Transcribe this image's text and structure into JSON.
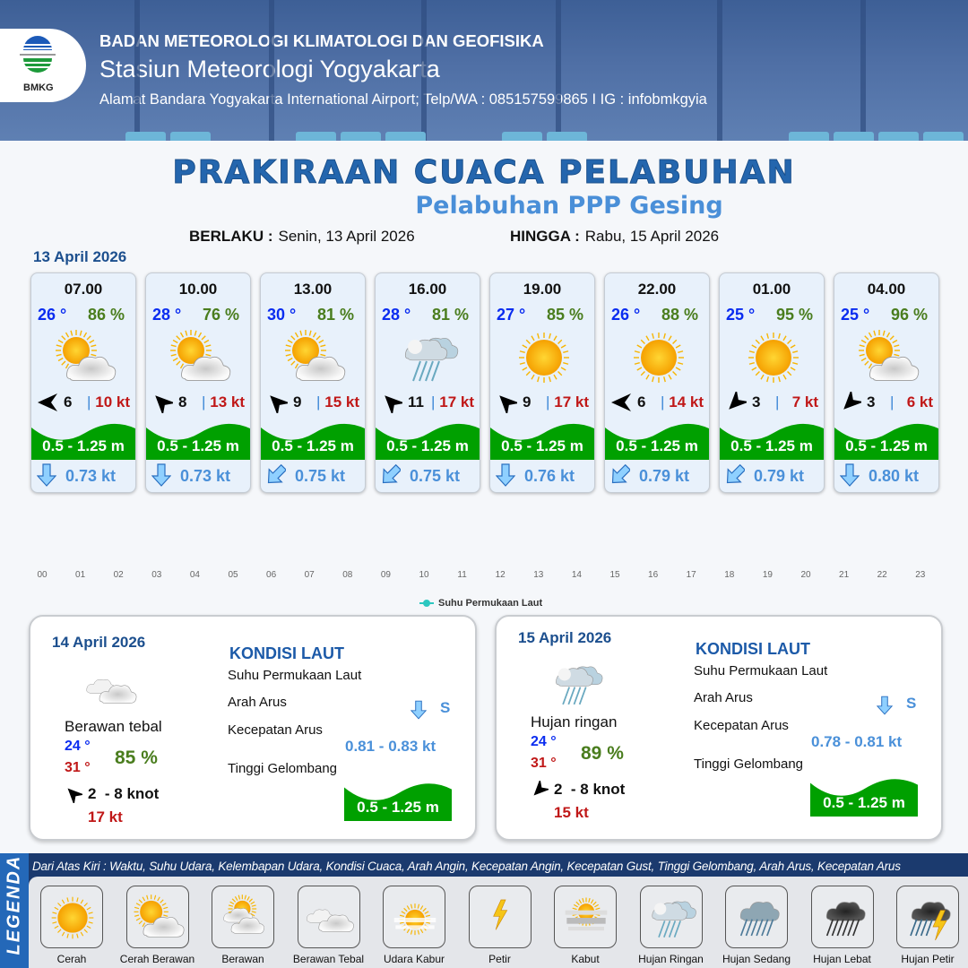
{
  "header": {
    "logo_text": "BMKG",
    "agency": "BADAN METEOROLOGI KLIMATOLOGI DAN GEOFISIKA",
    "station": "Stasiun Meteorologi Yogyakarta",
    "address": "Alamat Bandara Yogyakarta International Airport; Telp/WA : 085157599865 I IG : infobmkgyia"
  },
  "title": "PRAKIRAAN CUACA PELABUHAN",
  "subtitle": "Pelabuhan PPP Gesing",
  "validity": {
    "from_label": "BERLAKU :",
    "from_value": "Senin, 13 April 2026",
    "to_label": "HINGGA :",
    "to_value": "Rabu, 15 April 2026"
  },
  "day1": {
    "date": "13 April 2026",
    "forecasts": [
      {
        "time": "07.00",
        "temp": "26 °",
        "rh": "86 %",
        "weather": "cerah-berawan",
        "wind_dir": "W",
        "wind": "6",
        "gust": "10 kt",
        "wave": "0.5 - 1.25 m",
        "current_dir": "S",
        "current": "0.73 kt"
      },
      {
        "time": "10.00",
        "temp": "28 °",
        "rh": "76 %",
        "weather": "cerah-berawan",
        "wind_dir": "NW",
        "wind": "8",
        "gust": "13 kt",
        "wave": "0.5 - 1.25 m",
        "current_dir": "S",
        "current": "0.73 kt"
      },
      {
        "time": "13.00",
        "temp": "30 °",
        "rh": "81 %",
        "weather": "cerah-berawan",
        "wind_dir": "NW",
        "wind": "9",
        "gust": "15 kt",
        "wave": "0.5 - 1.25 m",
        "current_dir": "SW",
        "current": "0.75 kt"
      },
      {
        "time": "16.00",
        "temp": "28 °",
        "rh": "81 %",
        "weather": "hujan-ringan",
        "wind_dir": "NW",
        "wind": "11",
        "gust": "17 kt",
        "wave": "0.5 - 1.25 m",
        "current_dir": "SW",
        "current": "0.75 kt"
      },
      {
        "time": "19.00",
        "temp": "27 °",
        "rh": "85 %",
        "weather": "cerah",
        "wind_dir": "NW",
        "wind": "9",
        "gust": "17 kt",
        "wave": "0.5 - 1.25 m",
        "current_dir": "S",
        "current": "0.76 kt"
      },
      {
        "time": "22.00",
        "temp": "26 °",
        "rh": "88 %",
        "weather": "cerah",
        "wind_dir": "W",
        "wind": "6",
        "gust": "14 kt",
        "wave": "0.5 - 1.25 m",
        "current_dir": "SW",
        "current": "0.79 kt"
      },
      {
        "time": "01.00",
        "temp": "25 °",
        "rh": "95 %",
        "weather": "cerah",
        "wind_dir": "SW",
        "wind": "3",
        "gust": "7 kt",
        "wave": "0.5 - 1.25 m",
        "current_dir": "SW",
        "current": "0.79 kt"
      },
      {
        "time": "04.00",
        "temp": "25 °",
        "rh": "96 %",
        "weather": "cerah-berawan",
        "wind_dir": "SW",
        "wind": "3",
        "gust": "6 kt",
        "wave": "0.5 - 1.25 m",
        "current_dir": "S",
        "current": "0.80 kt"
      }
    ]
  },
  "sst_chart": {
    "x_ticks": [
      "00",
      "01",
      "02",
      "03",
      "04",
      "05",
      "06",
      "07",
      "08",
      "09",
      "10",
      "11",
      "12",
      "13",
      "14",
      "15",
      "16",
      "17",
      "18",
      "19",
      "20",
      "21",
      "22",
      "23"
    ],
    "legend": "Suhu Permukaan Laut",
    "series_color": "#2cc7c0"
  },
  "days": [
    {
      "date": "14 April 2026",
      "weather": "berawan-tebal",
      "weather_label": "Berawan tebal",
      "tmin": "24 °",
      "tmax": "31 °",
      "rh": "85 %",
      "wind_dir": "NW",
      "wind": "2  - 8 knot",
      "gust": "17 kt",
      "kondisi_title": "KONDISI LAUT",
      "sst_label": "Suhu Permukaan Laut",
      "current_dir_label": "Arah Arus",
      "current_speed_label": "Kecepatan Arus",
      "wave_label": "Tinggi Gelombang",
      "current_dir": "S",
      "current_speed": "0.81 - 0.83 kt",
      "wave": "0.5 - 1.25 m"
    },
    {
      "date": "15 April 2026",
      "weather": "hujan-ringan",
      "weather_label": "Hujan ringan",
      "tmin": "24 °",
      "tmax": "31 °",
      "rh": "89 %",
      "wind_dir": "SW",
      "wind": "2  - 8 knot",
      "gust": "15 kt",
      "kondisi_title": "KONDISI LAUT",
      "sst_label": "Suhu Permukaan Laut",
      "current_dir_label": "Arah Arus",
      "current_speed_label": "Kecepatan Arus",
      "wave_label": "Tinggi Gelombang",
      "current_dir": "S",
      "current_speed": "0.78 - 0.81 kt",
      "wave": "0.5 - 1.25 m"
    }
  ],
  "legend": {
    "title": "LEGENDA",
    "description": "Dari Atas Kiri : Waktu, Suhu Udara, Kelembapan Udara, Kondisi Cuaca, Arah Angin, Kecepatan Angin, Kecepatan Gust, Tinggi Gelombang, Arah Arus, Kecepatan Arus",
    "items": [
      {
        "label": "Cerah",
        "icon": "cerah"
      },
      {
        "label": "Cerah Berawan",
        "icon": "cerah-berawan"
      },
      {
        "label": "Berawan",
        "icon": "berawan"
      },
      {
        "label": "Berawan Tebal",
        "icon": "berawan-tebal"
      },
      {
        "label": "Udara Kabur",
        "icon": "udara-kabur"
      },
      {
        "label": "Petir",
        "icon": "petir"
      },
      {
        "label": "Kabut",
        "icon": "kabut"
      },
      {
        "label": "Hujan Ringan",
        "icon": "hujan-ringan"
      },
      {
        "label": "Hujan Sedang",
        "icon": "hujan-sedang"
      },
      {
        "label": "Hujan Lebat",
        "icon": "hujan-lebat"
      },
      {
        "label": "Hujan Petir",
        "icon": "hujan-petir"
      }
    ]
  },
  "colors": {
    "title": "#2466ae",
    "temp": "#0a2cf0",
    "humidity": "#4a7d1e",
    "gust": "#c01818",
    "wave": "#00a000",
    "current": "#4a90d9",
    "legend_bg": "#1b3a6e"
  }
}
